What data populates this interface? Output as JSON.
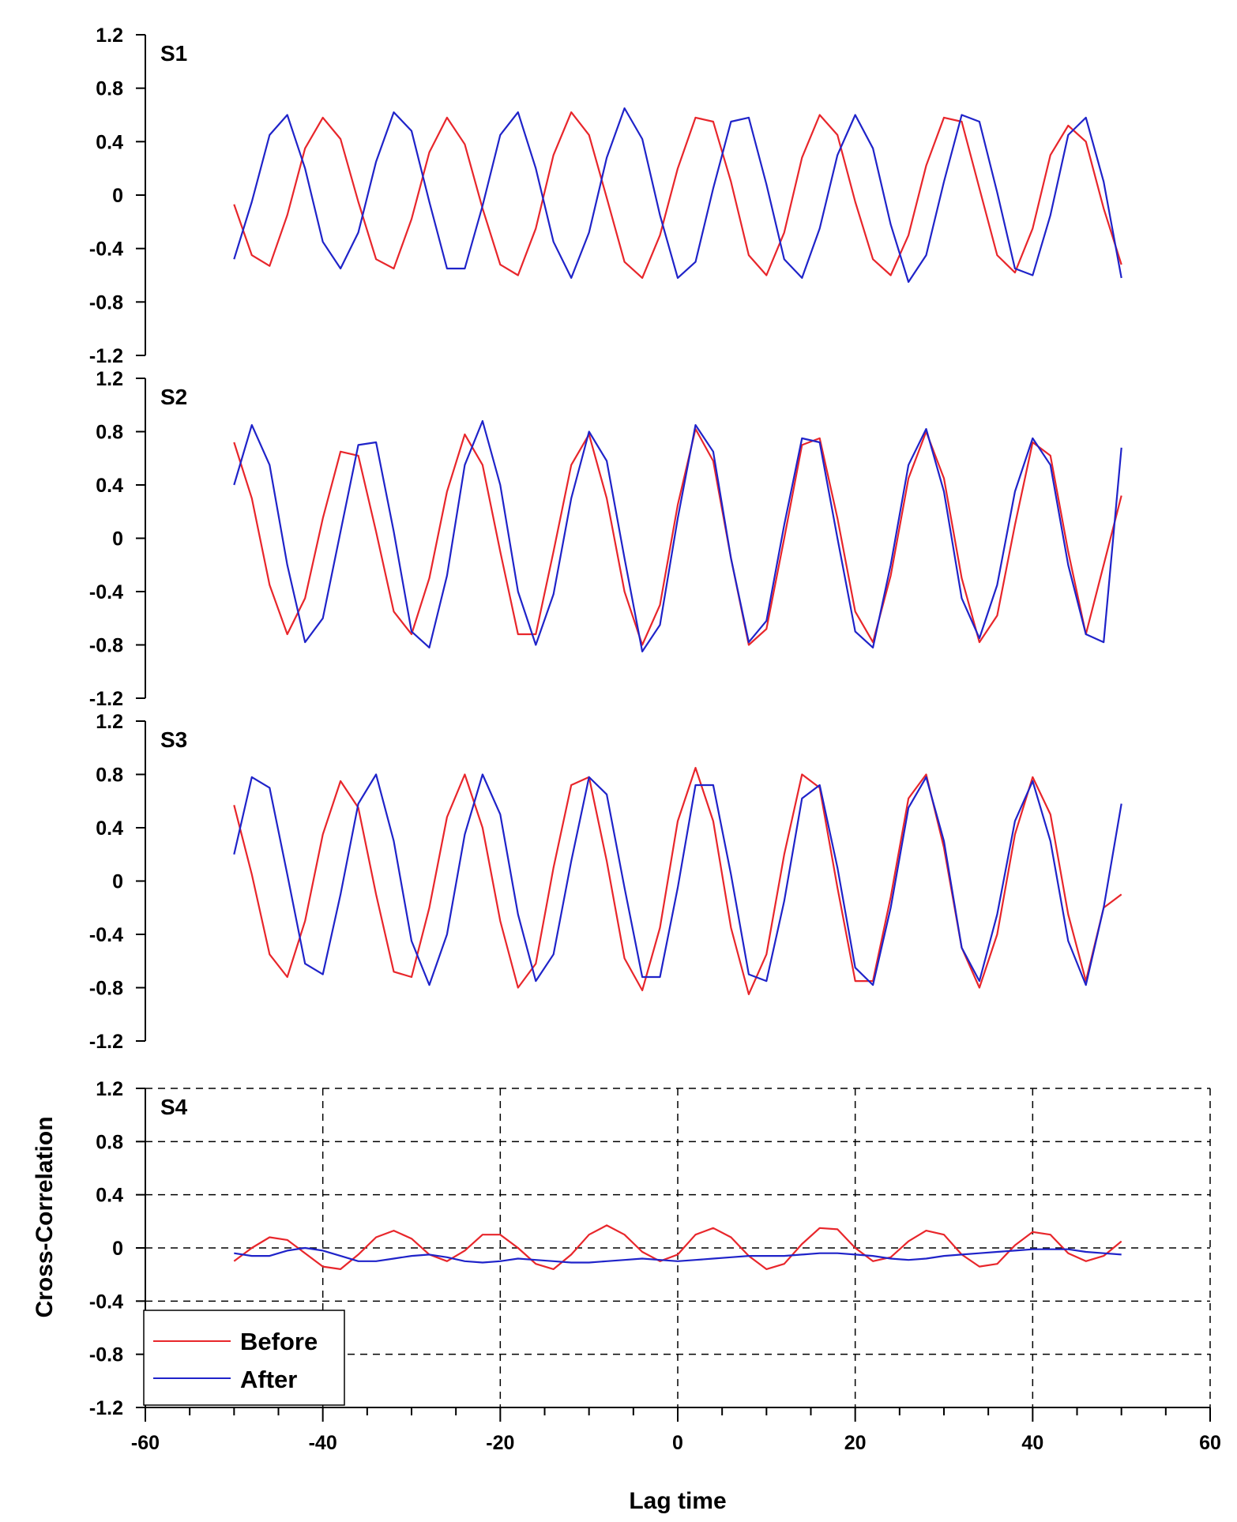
{
  "chart_data": {
    "type": "line",
    "xlabel": "Lag time",
    "ylabel": "Cross-Correlation",
    "xlim": [
      -60,
      60
    ],
    "ylim": [
      -1.2,
      1.2
    ],
    "x_ticks": [
      "-60",
      "-40",
      "-20",
      "0",
      "20",
      "40",
      "60"
    ],
    "y_ticks": [
      "-1.2",
      "-0.8",
      "-0.4",
      "0",
      "0.4",
      "0.8",
      "1.2"
    ],
    "legend": {
      "entries": [
        "Before",
        "After"
      ],
      "placement": "bottom-left"
    },
    "colors": {
      "Before": "#e8262b",
      "After": "#1f23c9"
    },
    "panels": [
      {
        "label": "S1",
        "grid": false,
        "series": [
          {
            "name": "Before",
            "x": [
              -50,
              -48,
              -46,
              -44,
              -42,
              -40,
              -38,
              -36,
              -34,
              -32,
              -30,
              -28,
              -26,
              -24,
              -22,
              -20,
              -18,
              -16,
              -14,
              -12,
              -10,
              -8,
              -6,
              -4,
              -2,
              0,
              2,
              4,
              6,
              8,
              10,
              12,
              14,
              16,
              18,
              20,
              22,
              24,
              26,
              28,
              30,
              32,
              34,
              36,
              38,
              40,
              42,
              44,
              46,
              48,
              50
            ],
            "y": [
              -0.07,
              -0.45,
              -0.53,
              -0.15,
              0.35,
              0.58,
              0.42,
              -0.05,
              -0.48,
              -0.55,
              -0.18,
              0.32,
              0.58,
              0.38,
              -0.1,
              -0.52,
              -0.6,
              -0.25,
              0.3,
              0.62,
              0.45,
              -0.02,
              -0.5,
              -0.62,
              -0.3,
              0.2,
              0.58,
              0.55,
              0.1,
              -0.45,
              -0.6,
              -0.28,
              0.28,
              0.6,
              0.45,
              -0.05,
              -0.48,
              -0.6,
              -0.3,
              0.22,
              0.58,
              0.55,
              0.05,
              -0.45,
              -0.58,
              -0.25,
              0.3,
              0.52,
              0.4,
              -0.1,
              -0.52
            ]
          },
          {
            "name": "After",
            "x": [
              -50,
              -48,
              -46,
              -44,
              -42,
              -40,
              -38,
              -36,
              -34,
              -32,
              -30,
              -28,
              -26,
              -24,
              -22,
              -20,
              -18,
              -16,
              -14,
              -12,
              -10,
              -8,
              -6,
              -4,
              -2,
              0,
              2,
              4,
              6,
              8,
              10,
              12,
              14,
              16,
              18,
              20,
              22,
              24,
              26,
              28,
              30,
              32,
              34,
              36,
              38,
              40,
              42,
              44,
              46,
              48,
              50
            ],
            "y": [
              -0.48,
              -0.05,
              0.45,
              0.6,
              0.2,
              -0.35,
              -0.55,
              -0.28,
              0.25,
              0.62,
              0.48,
              -0.05,
              -0.55,
              -0.55,
              -0.08,
              0.45,
              0.62,
              0.2,
              -0.35,
              -0.62,
              -0.28,
              0.28,
              0.65,
              0.42,
              -0.15,
              -0.62,
              -0.5,
              0.05,
              0.55,
              0.58,
              0.08,
              -0.48,
              -0.62,
              -0.25,
              0.3,
              0.6,
              0.35,
              -0.22,
              -0.65,
              -0.45,
              0.1,
              0.6,
              0.55,
              0.02,
              -0.55,
              -0.6,
              -0.15,
              0.45,
              0.58,
              0.1,
              -0.62
            ]
          }
        ]
      },
      {
        "label": "S2",
        "grid": false,
        "series": [
          {
            "name": "Before",
            "x": [
              -50,
              -48,
              -46,
              -44,
              -42,
              -40,
              -38,
              -36,
              -34,
              -32,
              -30,
              -28,
              -26,
              -24,
              -22,
              -20,
              -18,
              -16,
              -14,
              -12,
              -10,
              -8,
              -6,
              -4,
              -2,
              0,
              2,
              4,
              6,
              8,
              10,
              12,
              14,
              16,
              18,
              20,
              22,
              24,
              26,
              28,
              30,
              32,
              34,
              36,
              38,
              40,
              42,
              44,
              46,
              48,
              50
            ],
            "y": [
              0.72,
              0.3,
              -0.35,
              -0.72,
              -0.45,
              0.15,
              0.65,
              0.62,
              0.05,
              -0.55,
              -0.72,
              -0.3,
              0.35,
              0.78,
              0.55,
              -0.1,
              -0.72,
              -0.72,
              -0.1,
              0.55,
              0.78,
              0.3,
              -0.4,
              -0.8,
              -0.5,
              0.25,
              0.82,
              0.58,
              -0.15,
              -0.8,
              -0.68,
              0.0,
              0.7,
              0.75,
              0.15,
              -0.55,
              -0.78,
              -0.28,
              0.45,
              0.8,
              0.45,
              -0.3,
              -0.78,
              -0.58,
              0.1,
              0.72,
              0.62,
              -0.1,
              -0.72,
              -0.2,
              0.32
            ]
          },
          {
            "name": "After",
            "x": [
              -50,
              -48,
              -46,
              -44,
              -42,
              -40,
              -38,
              -36,
              -34,
              -32,
              -30,
              -28,
              -26,
              -24,
              -22,
              -20,
              -18,
              -16,
              -14,
              -12,
              -10,
              -8,
              -6,
              -4,
              -2,
              0,
              2,
              4,
              6,
              8,
              10,
              12,
              14,
              16,
              18,
              20,
              22,
              24,
              26,
              28,
              30,
              32,
              34,
              36,
              38,
              40,
              42,
              44,
              46,
              48,
              50
            ],
            "y": [
              0.4,
              0.85,
              0.55,
              -0.2,
              -0.78,
              -0.6,
              0.05,
              0.7,
              0.72,
              0.05,
              -0.7,
              -0.82,
              -0.28,
              0.55,
              0.88,
              0.4,
              -0.4,
              -0.8,
              -0.42,
              0.3,
              0.8,
              0.58,
              -0.15,
              -0.85,
              -0.65,
              0.15,
              0.85,
              0.65,
              -0.15,
              -0.78,
              -0.62,
              0.1,
              0.75,
              0.72,
              0.0,
              -0.7,
              -0.82,
              -0.2,
              0.55,
              0.82,
              0.35,
              -0.45,
              -0.75,
              -0.35,
              0.35,
              0.75,
              0.55,
              -0.2,
              -0.72,
              -0.78,
              0.68
            ]
          }
        ]
      },
      {
        "label": "S3",
        "grid": false,
        "series": [
          {
            "name": "Before",
            "x": [
              -50,
              -48,
              -46,
              -44,
              -42,
              -40,
              -38,
              -36,
              -34,
              -32,
              -30,
              -28,
              -26,
              -24,
              -22,
              -20,
              -18,
              -16,
              -14,
              -12,
              -10,
              -8,
              -6,
              -4,
              -2,
              0,
              2,
              4,
              6,
              8,
              10,
              12,
              14,
              16,
              18,
              20,
              22,
              24,
              26,
              28,
              30,
              32,
              34,
              36,
              38,
              40,
              42,
              44,
              46,
              48,
              50
            ],
            "y": [
              0.57,
              0.05,
              -0.55,
              -0.72,
              -0.3,
              0.35,
              0.75,
              0.55,
              -0.1,
              -0.68,
              -0.72,
              -0.2,
              0.48,
              0.8,
              0.4,
              -0.3,
              -0.8,
              -0.62,
              0.1,
              0.72,
              0.78,
              0.15,
              -0.58,
              -0.82,
              -0.35,
              0.45,
              0.85,
              0.45,
              -0.35,
              -0.85,
              -0.55,
              0.2,
              0.8,
              0.7,
              -0.05,
              -0.75,
              -0.75,
              -0.12,
              0.62,
              0.8,
              0.25,
              -0.5,
              -0.8,
              -0.4,
              0.35,
              0.78,
              0.5,
              -0.25,
              -0.75,
              -0.2,
              -0.1
            ]
          },
          {
            "name": "After",
            "x": [
              -50,
              -48,
              -46,
              -44,
              -42,
              -40,
              -38,
              -36,
              -34,
              -32,
              -30,
              -28,
              -26,
              -24,
              -22,
              -20,
              -18,
              -16,
              -14,
              -12,
              -10,
              -8,
              -6,
              -4,
              -2,
              0,
              2,
              4,
              6,
              8,
              10,
              12,
              14,
              16,
              18,
              20,
              22,
              24,
              26,
              28,
              30,
              32,
              34,
              36,
              38,
              40,
              42,
              44,
              46,
              48,
              50
            ],
            "y": [
              0.2,
              0.78,
              0.7,
              0.05,
              -0.62,
              -0.7,
              -0.1,
              0.58,
              0.8,
              0.3,
              -0.45,
              -0.78,
              -0.4,
              0.35,
              0.8,
              0.5,
              -0.25,
              -0.75,
              -0.55,
              0.15,
              0.78,
              0.65,
              -0.05,
              -0.72,
              -0.72,
              -0.05,
              0.72,
              0.72,
              0.05,
              -0.7,
              -0.75,
              -0.15,
              0.62,
              0.72,
              0.1,
              -0.65,
              -0.78,
              -0.2,
              0.55,
              0.78,
              0.3,
              -0.5,
              -0.75,
              -0.25,
              0.45,
              0.75,
              0.3,
              -0.45,
              -0.78,
              -0.2,
              0.58
            ]
          }
        ]
      },
      {
        "label": "S4",
        "grid": true,
        "series": [
          {
            "name": "Before",
            "x": [
              -50,
              -48,
              -46,
              -44,
              -42,
              -40,
              -38,
              -36,
              -34,
              -32,
              -30,
              -28,
              -26,
              -24,
              -22,
              -20,
              -18,
              -16,
              -14,
              -12,
              -10,
              -8,
              -6,
              -4,
              -2,
              0,
              2,
              4,
              6,
              8,
              10,
              12,
              14,
              16,
              18,
              20,
              22,
              24,
              26,
              28,
              30,
              32,
              34,
              36,
              38,
              40,
              42,
              44,
              46,
              48,
              50
            ],
            "y": [
              -0.1,
              0.0,
              0.08,
              0.06,
              -0.04,
              -0.14,
              -0.16,
              -0.05,
              0.08,
              0.13,
              0.07,
              -0.05,
              -0.1,
              -0.02,
              0.1,
              0.1,
              0.0,
              -0.12,
              -0.16,
              -0.05,
              0.1,
              0.17,
              0.1,
              -0.03,
              -0.1,
              -0.05,
              0.1,
              0.15,
              0.08,
              -0.06,
              -0.16,
              -0.12,
              0.03,
              0.15,
              0.14,
              0.0,
              -0.1,
              -0.07,
              0.05,
              0.13,
              0.1,
              -0.05,
              -0.14,
              -0.12,
              0.02,
              0.12,
              0.1,
              -0.04,
              -0.1,
              -0.06,
              0.05
            ]
          },
          {
            "name": "After",
            "x": [
              -50,
              -48,
              -46,
              -44,
              -42,
              -40,
              -38,
              -36,
              -34,
              -32,
              -30,
              -28,
              -26,
              -24,
              -22,
              -20,
              -18,
              -16,
              -14,
              -12,
              -10,
              -8,
              -6,
              -4,
              -2,
              0,
              2,
              4,
              6,
              8,
              10,
              12,
              14,
              16,
              18,
              20,
              22,
              24,
              26,
              28,
              30,
              32,
              34,
              36,
              38,
              40,
              42,
              44,
              46,
              48,
              50
            ],
            "y": [
              -0.04,
              -0.06,
              -0.06,
              -0.02,
              0.0,
              -0.02,
              -0.06,
              -0.1,
              -0.1,
              -0.08,
              -0.06,
              -0.05,
              -0.07,
              -0.1,
              -0.11,
              -0.1,
              -0.08,
              -0.09,
              -0.1,
              -0.11,
              -0.11,
              -0.1,
              -0.09,
              -0.08,
              -0.09,
              -0.1,
              -0.09,
              -0.08,
              -0.07,
              -0.06,
              -0.06,
              -0.06,
              -0.05,
              -0.04,
              -0.04,
              -0.05,
              -0.06,
              -0.08,
              -0.09,
              -0.08,
              -0.06,
              -0.05,
              -0.04,
              -0.03,
              -0.02,
              -0.01,
              -0.01,
              -0.01,
              -0.03,
              -0.04,
              -0.05
            ]
          }
        ]
      }
    ]
  }
}
